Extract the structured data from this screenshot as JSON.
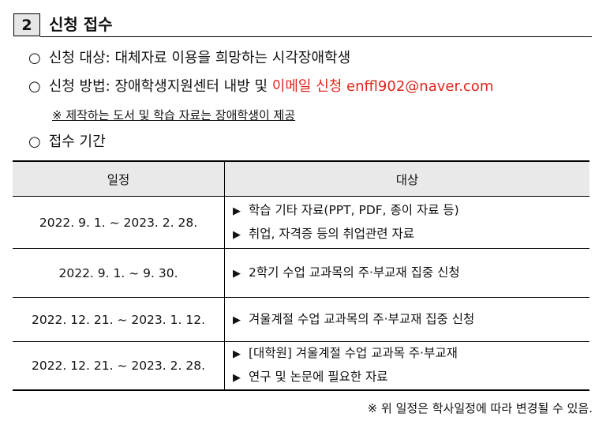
{
  "section": {
    "number": "2",
    "title": "신청 접수"
  },
  "items": [
    {
      "text": "신청 대상: 대체자료 이용을 희망하는 시각장애학생"
    },
    {
      "text": "신청 방법: 장애학생지원센터 내방 및 ",
      "highlight": "이메일 신청 enffl902@naver.com"
    },
    {
      "text": "접수 기간"
    }
  ],
  "note": "※ 제작하는 도서 및 학습 자료는 장애학생이 제공",
  "table": {
    "header": [
      "일정",
      "대상"
    ],
    "rows": [
      {
        "period": "2022. 9. 1. ~ 2023. 2. 28.",
        "targets": [
          "학습 기타 자료(PPT, PDF, 종이 자료 등)",
          "취업, 자격증 등의 취업관련 자료"
        ]
      },
      {
        "period": "2022. 9. 1. ~ 9. 30.",
        "targets": [
          "2학기 수업 교과목의 주·부교재 집중 신청"
        ]
      },
      {
        "period": "2022. 12. 21. ~ 2023. 1. 12.",
        "targets": [
          "겨울계절 수업 교과목의 주·부교재 집중 신청"
        ]
      },
      {
        "period": "2022. 12. 21. ~ 2023. 2. 28.",
        "targets": [
          "[대학원] 겨울계절 수업 교과목 주·부교재",
          "연구 및 논문에 필요한 자료"
        ]
      }
    ]
  },
  "footnote": "※ 위 일정은 학사일정에 따라 변경될 수 있음."
}
